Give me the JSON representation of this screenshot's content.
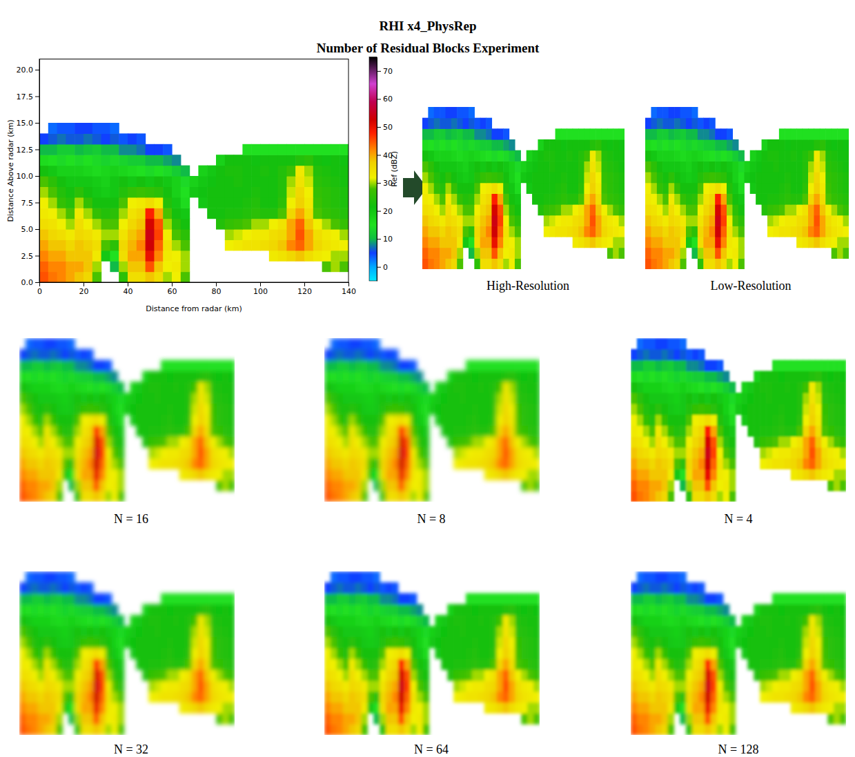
{
  "chart_data": {
    "type": "heatmap",
    "title": "RHI x4_PhysRep",
    "subtitle": "Number of Residual Blocks Experiment",
    "x_label": "Distance from radar (km)",
    "y_label": "Distance Above radar  (km)",
    "xlim": [
      0,
      140
    ],
    "ylim": [
      0,
      21
    ],
    "xticks": [
      0,
      20,
      40,
      60,
      80,
      100,
      120,
      140
    ],
    "yticks": [
      {
        "value": 0,
        "label": "0.0"
      },
      2.5,
      {
        "value": 5,
        "label": "5.0"
      },
      7.5,
      {
        "value": 10,
        "label": "10.0"
      },
      12.5,
      {
        "value": 15,
        "label": "15.0"
      },
      17.5,
      {
        "value": 20,
        "label": "20.0"
      }
    ],
    "x": [
      2,
      6,
      10,
      14,
      18,
      22,
      26,
      30,
      34,
      38,
      42,
      46,
      50,
      54,
      58,
      62,
      66,
      70,
      74,
      78,
      82,
      86,
      90,
      94,
      98,
      102,
      106,
      110,
      114,
      118,
      122,
      126,
      130,
      134,
      138
    ],
    "y": [
      0.5,
      1.5,
      2.5,
      3.5,
      4.5,
      5.5,
      6.5,
      7.5,
      8.5,
      9.5,
      10.5,
      11.5,
      12.5,
      13.5,
      14.5
    ],
    "z": [
      [
        45,
        43,
        42,
        40,
        38,
        36,
        28,
        null,
        null,
        25,
        35,
        35,
        38,
        35,
        30,
        32,
        28,
        null,
        null,
        null,
        null,
        null,
        null,
        null,
        null,
        null,
        null,
        null,
        null,
        null,
        null,
        null,
        null,
        null,
        null
      ],
      [
        44,
        42,
        42,
        40,
        40,
        38,
        30,
        null,
        10,
        30,
        38,
        38,
        45,
        38,
        32,
        33,
        30,
        null,
        null,
        null,
        null,
        null,
        null,
        null,
        null,
        null,
        null,
        null,
        null,
        null,
        null,
        null,
        28,
        30,
        28
      ],
      [
        42,
        40,
        40,
        38,
        38,
        38,
        33,
        20,
        15,
        35,
        40,
        40,
        50,
        42,
        33,
        32,
        30,
        null,
        null,
        null,
        null,
        null,
        null,
        null,
        null,
        null,
        33,
        34,
        36,
        38,
        35,
        33,
        32,
        30,
        30
      ],
      [
        40,
        38,
        38,
        36,
        38,
        37,
        35,
        28,
        25,
        36,
        39,
        42,
        53,
        44,
        34,
        30,
        28,
        null,
        null,
        null,
        null,
        32,
        33,
        34,
        34,
        35,
        36,
        38,
        42,
        44,
        40,
        36,
        34,
        33,
        32
      ],
      [
        38,
        36,
        35,
        33,
        36,
        35,
        33,
        30,
        30,
        34,
        38,
        40,
        54,
        46,
        32,
        28,
        25,
        null,
        null,
        null,
        null,
        30,
        31,
        32,
        33,
        33,
        35,
        36,
        40,
        45,
        40,
        35,
        33,
        32,
        30
      ],
      [
        35,
        34,
        32,
        30,
        35,
        32,
        30,
        28,
        28,
        32,
        36,
        38,
        52,
        45,
        30,
        25,
        22,
        null,
        null,
        null,
        24,
        26,
        27,
        28,
        30,
        30,
        32,
        34,
        40,
        44,
        38,
        32,
        30,
        28,
        26
      ],
      [
        33,
        32,
        30,
        28,
        33,
        30,
        26,
        24,
        25,
        30,
        34,
        36,
        48,
        40,
        28,
        22,
        20,
        null,
        null,
        22,
        22,
        23,
        23,
        24,
        25,
        24,
        24,
        28,
        36,
        40,
        35,
        28,
        26,
        25,
        24
      ],
      [
        32,
        30,
        26,
        24,
        30,
        26,
        22,
        22,
        22,
        28,
        32,
        33,
        35,
        32,
        24,
        20,
        16,
        null,
        20,
        22,
        22,
        22,
        22,
        23,
        24,
        22,
        22,
        25,
        32,
        37,
        33,
        27,
        25,
        24,
        23
      ],
      [
        30,
        28,
        24,
        22,
        25,
        22,
        20,
        19,
        20,
        24,
        26,
        27,
        26,
        25,
        22,
        18,
        15,
        20,
        21,
        22,
        22,
        22,
        22,
        22,
        23,
        22,
        22,
        24,
        31,
        36,
        32,
        26,
        25,
        24,
        23
      ],
      [
        28,
        25,
        22,
        20,
        20,
        20,
        19,
        18,
        20,
        22,
        20,
        22,
        20,
        22,
        20,
        18,
        14,
        18,
        20,
        21,
        22,
        22,
        23,
        22,
        22,
        22,
        22,
        24,
        30,
        34,
        31,
        25,
        24,
        23,
        22
      ],
      [
        22,
        20,
        18,
        18,
        18,
        17,
        16,
        17,
        18,
        17,
        16,
        15,
        14,
        15,
        14,
        12,
        10,
        null,
        18,
        20,
        22,
        23,
        23,
        22,
        22,
        23,
        22,
        24,
        27,
        33,
        30,
        24,
        23,
        22,
        22
      ],
      [
        16,
        15,
        14,
        15,
        14,
        15,
        14,
        13,
        14,
        13,
        12,
        12,
        10,
        10,
        9,
        8,
        null,
        null,
        null,
        null,
        18,
        22,
        22,
        22,
        21,
        22,
        22,
        22,
        22,
        24,
        25,
        22,
        21,
        22,
        21
      ],
      [
        10,
        10,
        12,
        12,
        10,
        11,
        12,
        10,
        10,
        8,
        8,
        7,
        5,
        5,
        4,
        null,
        null,
        null,
        null,
        null,
        null,
        null,
        null,
        15,
        15,
        15,
        15,
        15,
        15,
        15,
        15,
        15,
        15,
        15,
        15
      ],
      [
        5,
        6,
        7,
        6,
        6,
        7,
        6,
        5,
        6,
        4,
        5,
        4,
        null,
        null,
        null,
        null,
        null,
        null,
        null,
        null,
        null,
        null,
        null,
        null,
        null,
        null,
        null,
        null,
        null,
        null,
        null,
        null,
        null,
        null,
        null
      ],
      [
        null,
        3,
        4,
        4,
        5,
        5,
        4,
        4,
        3,
        null,
        null,
        null,
        null,
        null,
        null,
        null,
        null,
        null,
        null,
        null,
        null,
        null,
        null,
        null,
        null,
        null,
        null,
        null,
        null,
        null,
        null,
        null,
        null,
        null,
        null
      ]
    ],
    "colorbar": {
      "label": "Ref (dBZ)",
      "range": [
        -5,
        75
      ],
      "ticks": [
        0,
        10,
        20,
        30,
        40,
        50,
        60,
        70
      ]
    },
    "panels": [
      {
        "label": "High-Resolution"
      },
      {
        "label": "Low-Resolution"
      },
      {
        "label": "N = 16"
      },
      {
        "label": "N = 8"
      },
      {
        "label": "N = 4"
      },
      {
        "label": "N = 32"
      },
      {
        "label": "N = 64"
      },
      {
        "label": "N = 128"
      }
    ]
  }
}
